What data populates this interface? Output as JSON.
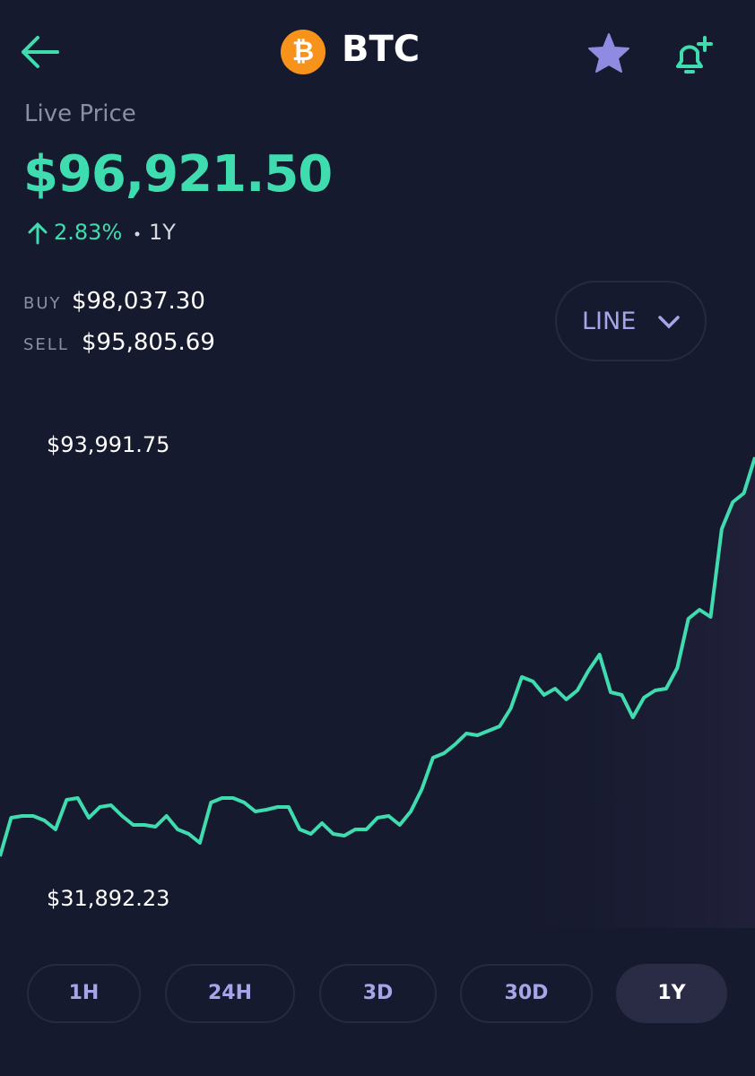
{
  "header": {
    "coin_symbol": "₿",
    "title": "BTC"
  },
  "price": {
    "label": "Live Price",
    "value": "$96,921.50",
    "change": "2.83%",
    "period": "1Y"
  },
  "quotes": {
    "buy_label": "BUY",
    "buy_value": "$98,037.30",
    "sell_label": "SELL",
    "sell_value": "$95,805.69"
  },
  "chart_style": "LINE",
  "chart_data": {
    "type": "line",
    "color": "#3fdcb0",
    "values": [
      31892.23,
      37890,
      38170,
      38170,
      37470,
      36080,
      40680,
      40960,
      37890,
      39570,
      39850,
      38170,
      36780,
      36780,
      36500,
      38170,
      36080,
      35380,
      33990,
      40270,
      40960,
      40960,
      40270,
      38870,
      39150,
      39570,
      39570,
      36080,
      35380,
      37060,
      35380,
      35100,
      36080,
      36080,
      37890,
      38170,
      36780,
      38870,
      42360,
      47240,
      47940,
      49340,
      51010,
      50730,
      51430,
      52130,
      54920,
      59800,
      59100,
      57010,
      57990,
      56310,
      57710,
      60780,
      63290,
      57430,
      57010,
      53520,
      56590,
      57710,
      57990,
      61200,
      68870,
      70270,
      69150,
      82830,
      87010,
      88410,
      93991.75
    ],
    "ylim": [
      31892.23,
      93991.75
    ],
    "yticks": [
      {
        "value": 31892.23,
        "label": "$31,892.23"
      },
      {
        "value": 93991.75,
        "label": "$93,991.75"
      }
    ]
  },
  "ranges": [
    "1H",
    "24H",
    "3D",
    "30D",
    "1Y"
  ],
  "active_range": 4
}
